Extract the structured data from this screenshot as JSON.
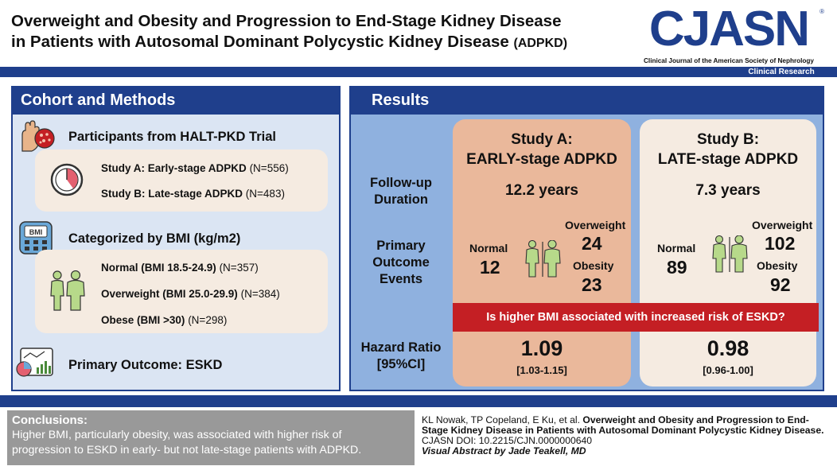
{
  "header": {
    "title_line1": "Overweight and Obesity and Progression to End-Stage Kidney Disease",
    "title_line2": "in Patients with Autosomal Dominant Polycystic Kidney Disease",
    "title_abbr": "(ADPKD)",
    "logo": "CJASN",
    "logo_reg": "®",
    "logo_subtitle": "Clinical Journal of the American Society of Nephrology",
    "tag": "Clinical Research"
  },
  "cohort": {
    "heading": "Cohort and Methods",
    "participants_heading": "Participants from HALT-PKD Trial",
    "study_a_label": "Study A: Early-stage ADPKD",
    "study_a_n": "(N=556)",
    "study_b_label": "Study B: Late-stage ADPKD",
    "study_b_n": "(N=483)",
    "bmi_heading": "Categorized by BMI (kg/m2)",
    "bmi_icon_text": "BMI",
    "normal_label": "Normal (BMI 18.5-24.9)",
    "normal_n": "(N=357)",
    "overweight_label": "Overweight (BMI 25.0-29.9)",
    "overweight_n": "(N=384)",
    "obese_label": "Obese (BMI >30)",
    "obese_n": "(N=298)",
    "outcome": "Primary Outcome: ESKD"
  },
  "results": {
    "heading": "Results",
    "followup_label_1": "Follow-up",
    "followup_label_2": "Duration",
    "events_label_1": "Primary",
    "events_label_2": "Outcome",
    "events_label_3": "Events",
    "hr_label_1": "Hazard Ratio",
    "hr_label_2": "[95%CI]",
    "question": "Is higher BMI associated with increased risk of ESKD?",
    "normal_word": "Normal",
    "overweight_word": "Overweight",
    "obesity_word": "Obesity",
    "study_a": {
      "title1": "Study A:",
      "title2": "EARLY-stage ADPKD",
      "followup": "12.2 years",
      "normal": "12",
      "overweight": "24",
      "obesity": "23",
      "hr": "1.09",
      "ci": "[1.03-1.15]"
    },
    "study_b": {
      "title1": "Study B:",
      "title2": "LATE-stage ADPKD",
      "followup": "7.3 years",
      "normal": "89",
      "overweight": "102",
      "obesity": "92",
      "hr": "0.98",
      "ci": "[0.96-1.00]"
    }
  },
  "conclusions": {
    "heading": "Conclusions:",
    "line1": "Higher BMI, particularly obesity, was associated with higher risk of",
    "line2": "progression to ESKD in early- but not late-stage patients with ADPKD."
  },
  "citation": {
    "authors": "KL Nowak, TP Copeland, E Ku, et al.",
    "title": "Overweight and Obesity and Progression to End-Stage Kidney Disease in Patients with Autosomal Dominant Polycystic Kidney Disease.",
    "doi": "CJASN DOI: 10.2215/CJN.0000000640",
    "credit": "Visual Abstract by Jade Teakell, MD"
  },
  "colors": {
    "navy": "#1f3f8c",
    "left_panel": "#dbe5f3",
    "right_panel": "#8fb1df",
    "card_a": "#eab89b",
    "card_b": "#f5ebe1",
    "red": "#c41f24",
    "gray": "#999999"
  }
}
